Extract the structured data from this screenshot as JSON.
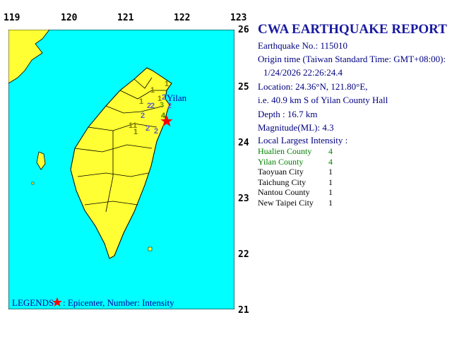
{
  "map": {
    "lon_ticks": [
      "119",
      "120",
      "121",
      "122",
      "123"
    ],
    "lat_ticks": [
      "26",
      "25",
      "24",
      "23",
      "22",
      "21"
    ],
    "epicenter": {
      "lat": 24.36,
      "lon": 121.8
    },
    "place_label": "Yilan",
    "legend": {
      "prefix": "LEGENDS",
      "text": ": Epicenter, Number: Intensity"
    },
    "intensity_marks": [
      {
        "v": "1",
        "x": 213,
        "y": 131,
        "color": "#808000"
      },
      {
        "v": "1",
        "x": 233,
        "y": 122,
        "color": "#808000"
      },
      {
        "v": "1",
        "x": 223,
        "y": 143,
        "color": "#808000"
      },
      {
        "v": "3",
        "x": 226,
        "y": 152,
        "color": "#6a9a00"
      },
      {
        "v": "2",
        "x": 229,
        "y": 141,
        "color": "#6060c0"
      },
      {
        "v": "2",
        "x": 237,
        "y": 153,
        "color": "#6060c0"
      },
      {
        "v": "2",
        "x": 208,
        "y": 153,
        "color": "#6060c0"
      },
      {
        "v": "2",
        "x": 213,
        "y": 153,
        "color": "#6060c0"
      },
      {
        "v": "2",
        "x": 199,
        "y": 167,
        "color": "#6060c0"
      },
      {
        "v": "1",
        "x": 197,
        "y": 147,
        "color": "#808000"
      },
      {
        "v": "4",
        "x": 228,
        "y": 167,
        "color": "#408000"
      },
      {
        "v": "1",
        "x": 182,
        "y": 181,
        "color": "#808000"
      },
      {
        "v": "1",
        "x": 188,
        "y": 181,
        "color": "#808000"
      },
      {
        "v": "1",
        "x": 189,
        "y": 190,
        "color": "#808000"
      },
      {
        "v": "2",
        "x": 206,
        "y": 185,
        "color": "#6060c0"
      },
      {
        "v": "2",
        "x": 218,
        "y": 189,
        "color": "#6060c0"
      }
    ],
    "colors": {
      "sea": "#00ffff",
      "land": "#ffff33",
      "epicenter": "#ff0000"
    }
  },
  "report": {
    "title": "CWA EARTHQUAKE REPORT",
    "lines": [
      "Earthquake No.: 115010",
      "Origin time (Taiwan Standard Time: GMT+08:00):",
      "1/24/2026 22:26:24.4",
      "Location: 24.36°N, 121.80°E,",
      "i.e. 40.9 km S of Yilan County Hall",
      "Depth :  16.7 km",
      "Magnitude(ML): 4.3",
      "Local Largest Intensity :"
    ],
    "intensities": [
      {
        "name": "Hualien County",
        "value": "4",
        "color": "#008000"
      },
      {
        "name": "Yilan County",
        "value": "4",
        "color": "#008000"
      },
      {
        "name": "Taoyuan City",
        "value": "1",
        "color": "#000000"
      },
      {
        "name": "Taichung City",
        "value": "1",
        "color": "#000000"
      },
      {
        "name": "Nantou County",
        "value": "1",
        "color": "#000000"
      },
      {
        "name": "New Taipei City",
        "value": "1",
        "color": "#000000"
      }
    ]
  }
}
